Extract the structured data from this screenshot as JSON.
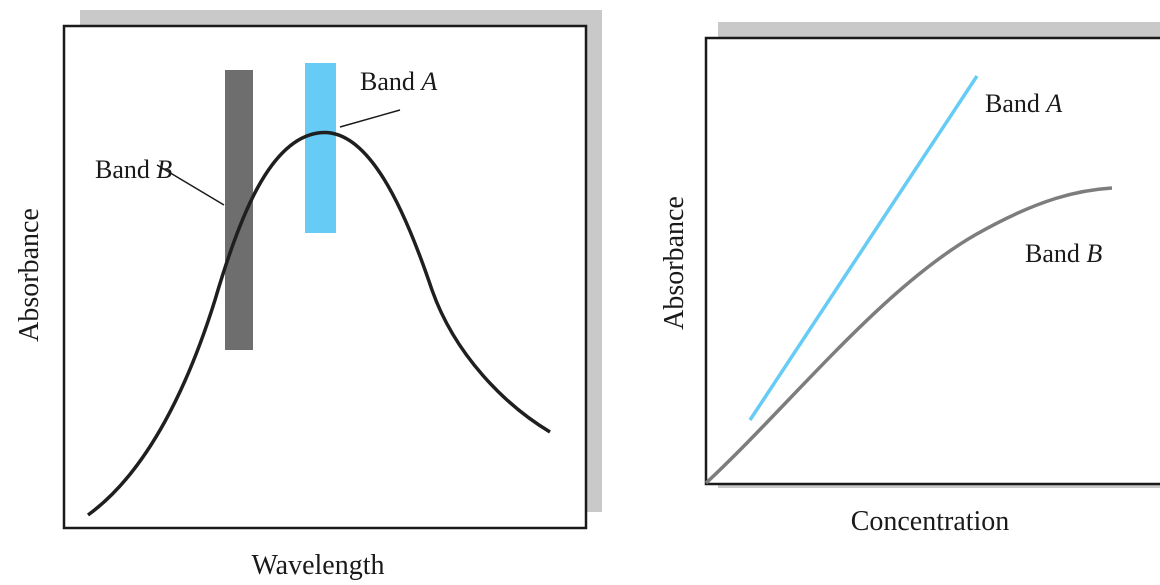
{
  "colors": {
    "frame": "#1a1a1a",
    "shadow": "#c9c9c9",
    "band_a": "#66ccf5",
    "band_b": "#6e6e6e",
    "spectrum": "#1f1f1f",
    "curve_b": "#7d7d7d"
  },
  "chart_data": [
    {
      "type": "line",
      "xlabel": "Wavelength",
      "ylabel": "Absorbance",
      "title": "",
      "axis_ticks": false,
      "series": [
        {
          "values_description_free": true
        }
      ],
      "annotations": [
        {
          "text": "Band A",
          "target": "band-a-bar"
        },
        {
          "text": "Band B",
          "target": "band-b-bar"
        }
      ],
      "band_a_label": {
        "prefix": "Band ",
        "letter": "A"
      },
      "band_b_label": {
        "prefix": "Band ",
        "letter": "B"
      }
    },
    {
      "type": "line",
      "xlabel": "Concentration",
      "ylabel": "Absorbance",
      "title": "",
      "axis_ticks": false,
      "band_a_label": {
        "prefix": "Band ",
        "letter": "A"
      },
      "band_b_label": {
        "prefix": "Band ",
        "letter": "B"
      }
    }
  ]
}
